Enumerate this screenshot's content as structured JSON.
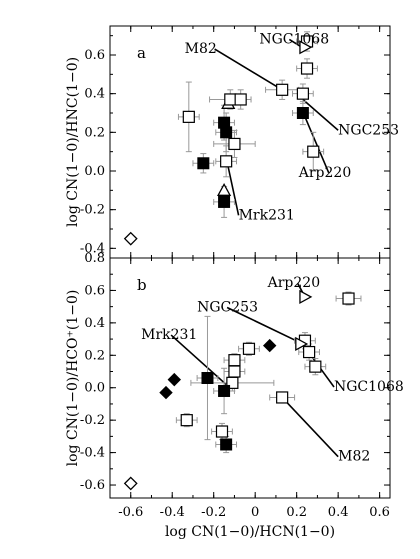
{
  "chart_data": [
    {
      "type": "scatter",
      "panel": "a",
      "ylabel": "log CN(1−0)/HNC(1−0)",
      "xlim": [
        -0.7,
        0.65
      ],
      "ylim": [
        -0.45,
        0.75
      ],
      "yticks": [
        -0.4,
        -0.2,
        0.0,
        0.2,
        0.4,
        0.6
      ],
      "ytick_labels": [
        "-0.4",
        "-0.2",
        "0.0",
        "0.2",
        "0.4",
        "0.6"
      ],
      "points": [
        {
          "x": -0.6,
          "y": -0.35,
          "marker": "open-diamond"
        },
        {
          "x": -0.13,
          "y": 0.35,
          "marker": "open-triangle-up"
        },
        {
          "x": -0.15,
          "y": -0.1,
          "marker": "open-triangle-up"
        },
        {
          "x": -0.32,
          "y": 0.28,
          "marker": "open-square",
          "xerr": 0.05,
          "yerr": 0.18
        },
        {
          "x": -0.12,
          "y": 0.37,
          "marker": "open-square",
          "xerr": 0.1,
          "yerr": 0.05
        },
        {
          "x": -0.07,
          "y": 0.37,
          "marker": "open-square",
          "xerr": 0.05,
          "yerr": 0.05
        },
        {
          "x": -0.1,
          "y": 0.14,
          "marker": "open-square",
          "xerr": 0.1,
          "yerr": 0.07
        },
        {
          "x": -0.14,
          "y": 0.05,
          "marker": "open-square",
          "xerr": 0.05,
          "yerr": 0.08
        },
        {
          "x": 0.13,
          "y": 0.42,
          "marker": "open-square",
          "xerr": 0.08,
          "yerr": 0.05
        },
        {
          "x": 0.23,
          "y": 0.4,
          "marker": "open-square",
          "xerr": 0.05,
          "yerr": 0.05
        },
        {
          "x": 0.25,
          "y": 0.53,
          "marker": "open-square",
          "xerr": 0.05,
          "yerr": 0.05
        },
        {
          "x": 0.25,
          "y": 0.67,
          "marker": "open-square",
          "xerr": 0.05,
          "yerr": 0.05
        },
        {
          "x": 0.28,
          "y": 0.1,
          "marker": "open-square",
          "xerr": 0.05,
          "yerr": 0.1
        },
        {
          "x": 0.24,
          "y": 0.64,
          "marker": "open-triangle-right"
        },
        {
          "x": -0.15,
          "y": 0.25,
          "marker": "filled-square",
          "xerr": 0.05,
          "yerr": 0.09
        },
        {
          "x": -0.14,
          "y": 0.2,
          "marker": "filled-square",
          "xerr": 0.05,
          "yerr": 0.1
        },
        {
          "x": -0.25,
          "y": 0.04,
          "marker": "filled-square",
          "xerr": 0.05,
          "yerr": 0.05
        },
        {
          "x": -0.15,
          "y": -0.16,
          "marker": "filled-square",
          "xerr": 0.05,
          "yerr": 0.08
        },
        {
          "x": 0.23,
          "y": 0.3,
          "marker": "filled-square",
          "xerr": 0.05,
          "yerr": 0.06
        }
      ],
      "annotations": [
        {
          "text": "M82",
          "x": -0.34,
          "y": 0.61,
          "tx": 0.13,
          "ty": 0.42
        },
        {
          "text": "NGC1068",
          "x": 0.02,
          "y": 0.66,
          "tx": 0.24,
          "ty": 0.63
        },
        {
          "text": "NGC253",
          "x": 0.4,
          "y": 0.19,
          "tx": 0.23,
          "ty": 0.37
        },
        {
          "text": "Arp220",
          "x": 0.21,
          "y": -0.03,
          "tx": 0.24,
          "ty": 0.28
        },
        {
          "text": "Mrk231",
          "x": -0.08,
          "y": -0.25,
          "tx": -0.13,
          "ty": 0.02
        }
      ]
    },
    {
      "type": "scatter",
      "panel": "b",
      "xlabel": "log CN(1−0)/HCN(1−0)",
      "ylabel": "log CN(1−0)/HCO⁺(1−0)",
      "xlim": [
        -0.7,
        0.65
      ],
      "ylim": [
        -0.68,
        0.8
      ],
      "xticks": [
        -0.6,
        -0.4,
        -0.2,
        0.0,
        0.2,
        0.4,
        0.6
      ],
      "xtick_labels": [
        "-0.6",
        "-0.4",
        "-0.2",
        "0",
        "0.2",
        "0.4",
        "0.6"
      ],
      "yticks": [
        -0.6,
        -0.4,
        -0.2,
        0.0,
        0.2,
        0.4,
        0.6,
        0.8
      ],
      "ytick_labels": [
        "-0.6",
        "-0.4",
        "-0.2",
        "0.0",
        "0.2",
        "0.4",
        "0.6",
        "0.8"
      ],
      "points": [
        {
          "x": -0.6,
          "y": -0.59,
          "marker": "open-diamond"
        },
        {
          "x": -0.43,
          "y": -0.03,
          "marker": "filled-diamond"
        },
        {
          "x": -0.39,
          "y": 0.05,
          "marker": "filled-diamond"
        },
        {
          "x": 0.07,
          "y": 0.26,
          "marker": "filled-diamond"
        },
        {
          "x": -0.33,
          "y": -0.2,
          "marker": "open-square",
          "xerr": 0.05,
          "yerr": 0.04
        },
        {
          "x": -0.16,
          "y": -0.27,
          "marker": "open-square",
          "xerr": 0.05,
          "yerr": 0.05
        },
        {
          "x": -0.1,
          "y": 0.1,
          "marker": "open-square",
          "xerr": 0.05,
          "yerr": 0.05
        },
        {
          "x": -0.1,
          "y": 0.17,
          "marker": "open-square",
          "xerr": 0.05,
          "yerr": 0.04
        },
        {
          "x": -0.03,
          "y": 0.24,
          "marker": "open-square",
          "xerr": 0.05,
          "yerr": 0.04
        },
        {
          "x": -0.11,
          "y": 0.03,
          "marker": "open-square",
          "xerr": 0.2,
          "yerr": 0.05
        },
        {
          "x": 0.13,
          "y": -0.06,
          "marker": "open-square",
          "xerr": 0.06,
          "yerr": 0.03
        },
        {
          "x": 0.24,
          "y": 0.29,
          "marker": "open-square",
          "xerr": 0.05,
          "yerr": 0.05
        },
        {
          "x": 0.26,
          "y": 0.22,
          "marker": "open-square",
          "xerr": 0.05,
          "yerr": 0.05
        },
        {
          "x": 0.29,
          "y": 0.13,
          "marker": "open-square",
          "xerr": 0.05,
          "yerr": 0.05
        },
        {
          "x": 0.45,
          "y": 0.55,
          "marker": "open-square",
          "xerr": 0.06,
          "yerr": 0.04
        },
        {
          "x": 0.24,
          "y": 0.56,
          "marker": "open-triangle-right"
        },
        {
          "x": 0.22,
          "y": 0.27,
          "marker": "open-triangle-right"
        },
        {
          "x": -0.23,
          "y": 0.06,
          "marker": "filled-square",
          "xerr": 0.05,
          "yerr": 0.38
        },
        {
          "x": -0.15,
          "y": -0.02,
          "marker": "filled-square",
          "xerr": 0.05,
          "yerr": 0.14
        },
        {
          "x": -0.14,
          "y": -0.35,
          "marker": "filled-square",
          "xerr": 0.05,
          "yerr": 0.05
        }
      ],
      "annotations": [
        {
          "text": "Arp220",
          "x": 0.06,
          "y": 0.62,
          "tx": 0.24,
          "ty": 0.56
        },
        {
          "text": "NGC253",
          "x": -0.28,
          "y": 0.47,
          "tx": 0.23,
          "ty": 0.27
        },
        {
          "text": "NGC1068",
          "x": 0.38,
          "y": -0.02,
          "tx": 0.24,
          "ty": 0.25
        },
        {
          "text": "Mrk231",
          "x": -0.55,
          "y": 0.3,
          "tx": -0.14,
          "ty": 0.02
        },
        {
          "text": "M82",
          "x": 0.4,
          "y": -0.45,
          "tx": 0.13,
          "ty": -0.06
        }
      ]
    }
  ]
}
